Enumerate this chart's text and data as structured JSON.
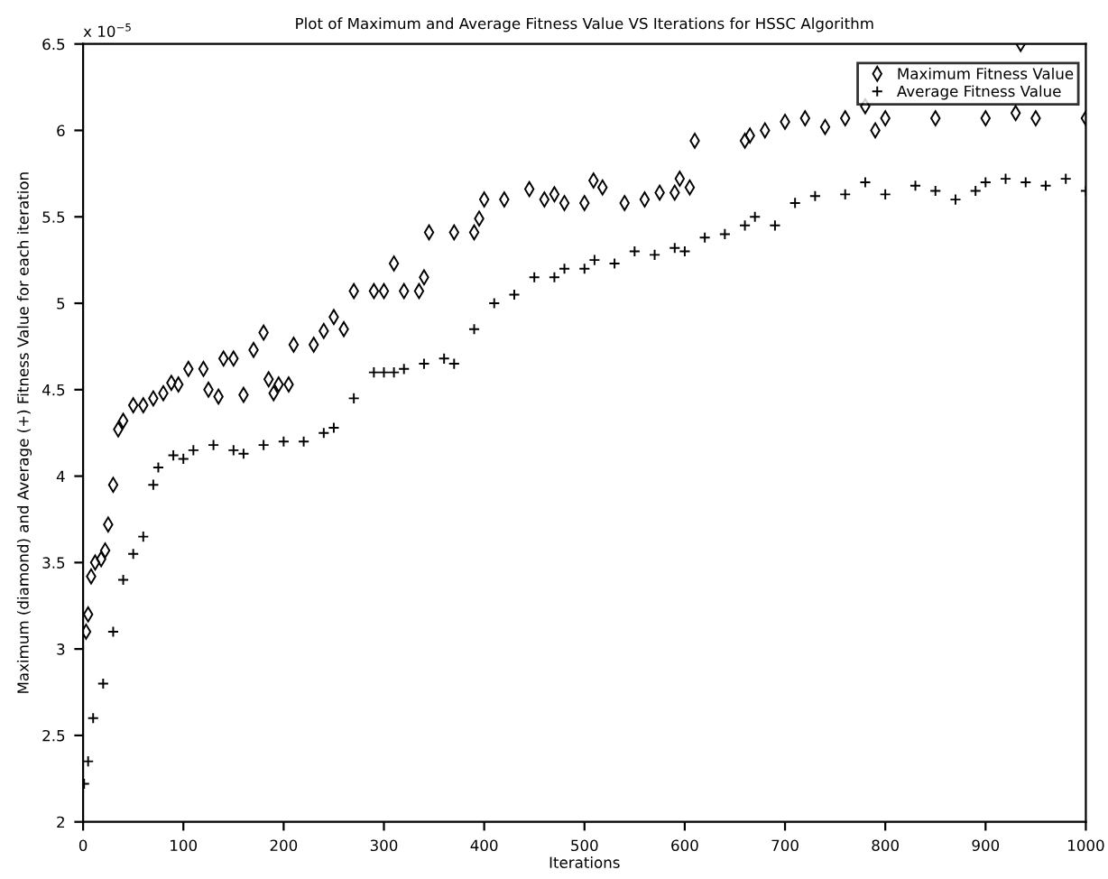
{
  "chart_data": {
    "type": "scatter",
    "title": "Plot of Maximum and Average Fitness Value VS Iterations for HSSC Algorithm",
    "xlabel": "Iterations",
    "ylabel": "Maximum (diamond) and Average (+) Fitness Value for each iteration",
    "annotations": [
      "x 10$^{−5}$"
    ],
    "series": [
      {
        "name": "Maximum Fitness Value",
        "color": "#000000",
        "marker": "diamond",
        "x": [
          3,
          5,
          8,
          12,
          18,
          22,
          25,
          30,
          35,
          40,
          50,
          60,
          70,
          80,
          88,
          95,
          105,
          120,
          125,
          135,
          140,
          150,
          160,
          170,
          180,
          185,
          190,
          195,
          205,
          210,
          230,
          240,
          250,
          260,
          270,
          290,
          300,
          310,
          320,
          335,
          340,
          345,
          370,
          390,
          395,
          400,
          420,
          445,
          460,
          470,
          480,
          500,
          509,
          518,
          540,
          560,
          575,
          590,
          595,
          605,
          610,
          660,
          665,
          680,
          700,
          720,
          740,
          760,
          780,
          790,
          800,
          850,
          900,
          930,
          935,
          950,
          1000
        ],
        "values": [
          3.1,
          3.2,
          3.42,
          3.5,
          3.52,
          3.57,
          3.72,
          3.95,
          4.27,
          4.32,
          4.41,
          4.41,
          4.45,
          4.48,
          4.54,
          4.53,
          4.62,
          4.62,
          4.5,
          4.46,
          4.68,
          4.68,
          4.47,
          4.73,
          4.83,
          4.56,
          4.48,
          4.53,
          4.53,
          4.76,
          4.76,
          4.84,
          4.92,
          4.85,
          5.07,
          5.07,
          5.07,
          5.23,
          5.07,
          5.07,
          5.15,
          5.41,
          5.41,
          5.41,
          5.49,
          5.6,
          5.6,
          5.66,
          5.6,
          5.63,
          5.58,
          5.58,
          5.71,
          5.67,
          5.58,
          5.6,
          5.64,
          5.64,
          5.72,
          5.67,
          5.94,
          5.94,
          5.97,
          6.0,
          6.05,
          6.07,
          6.02,
          6.07,
          6.14,
          6.0,
          6.07,
          6.07,
          6.07,
          6.1,
          6.5,
          6.07,
          6.07
        ]
      },
      {
        "name": "Average Fitness Value",
        "color": "#000000",
        "marker": "cross",
        "x": [
          1,
          5,
          10,
          20,
          30,
          40,
          50,
          60,
          70,
          75,
          90,
          100,
          110,
          130,
          150,
          160,
          180,
          200,
          220,
          240,
          250,
          270,
          290,
          300,
          310,
          320,
          340,
          360,
          370,
          390,
          410,
          430,
          450,
          470,
          480,
          500,
          510,
          530,
          550,
          570,
          590,
          600,
          620,
          640,
          660,
          670,
          690,
          710,
          730,
          760,
          780,
          800,
          830,
          850,
          870,
          890,
          900,
          920,
          940,
          960,
          980,
          1000
        ],
        "values": [
          2.22,
          2.35,
          2.6,
          2.8,
          3.1,
          3.4,
          3.55,
          3.65,
          3.95,
          4.05,
          4.12,
          4.1,
          4.15,
          4.18,
          4.15,
          4.13,
          4.18,
          4.2,
          4.2,
          4.25,
          4.28,
          4.45,
          4.6,
          4.6,
          4.6,
          4.62,
          4.65,
          4.68,
          4.65,
          4.85,
          5.0,
          5.05,
          5.15,
          5.15,
          5.2,
          5.2,
          5.25,
          5.23,
          5.3,
          5.28,
          5.32,
          5.3,
          5.38,
          5.4,
          5.45,
          5.5,
          5.45,
          5.58,
          5.62,
          5.63,
          5.7,
          5.63,
          5.68,
          5.65,
          5.6,
          5.65,
          5.7,
          5.72,
          5.7,
          5.68,
          5.72,
          5.65
        ]
      }
    ],
    "xlim": [
      0,
      1000
    ],
    "xticks": [
      0,
      100,
      200,
      300,
      400,
      500,
      600,
      700,
      800,
      900,
      1000
    ],
    "ylim": [
      2,
      6.5
    ],
    "yticks": [
      2,
      2.5,
      3,
      3.5,
      4,
      4.5,
      5,
      5.5,
      6,
      6.5
    ],
    "legend": "top right"
  }
}
